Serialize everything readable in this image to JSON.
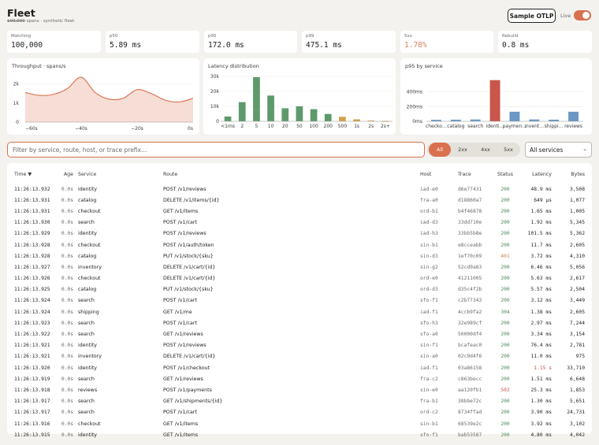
{
  "header": {
    "title": "Fleet",
    "subtitle_count": "100,000",
    "subtitle_rest": " spans · synthetic fleet",
    "sample_button": "Sample OTLP",
    "live_label": "Live"
  },
  "stats": [
    {
      "label": "Matching",
      "value": "100,000",
      "warn": false
    },
    {
      "label": "p50",
      "value": "5.89 ms",
      "warn": false
    },
    {
      "label": "p95",
      "value": "172.0 ms",
      "warn": false
    },
    {
      "label": "p99",
      "value": "475.1 ms",
      "warn": false
    },
    {
      "label": "5xx",
      "value": "1.78%",
      "warn": true
    },
    {
      "label": "Rebuild",
      "value": "0.8 ms",
      "warn": false
    }
  ],
  "colors": {
    "accent": "#d9704e",
    "green": "#5e9a6c",
    "gold": "#d4a14a",
    "red": "#c8564a",
    "blue": "#6b98c4"
  },
  "chart_data": [
    {
      "type": "area",
      "title": "Throughput · spans/s",
      "x": [
        -60,
        -55,
        -50,
        -45,
        -40,
        -35,
        -30,
        -25,
        -20,
        -15,
        -10,
        -5,
        0
      ],
      "values": [
        1550,
        1400,
        1450,
        1750,
        2350,
        1550,
        1200,
        1250,
        1700,
        1500,
        1150,
        1050,
        1250
      ],
      "yticks": [
        "0",
        "1k",
        "2k"
      ],
      "ylim": [
        0,
        2600
      ],
      "xticks": [
        "−60s",
        "−40s",
        "−20s",
        "0s"
      ],
      "xtick_values": [
        -60,
        -40,
        -20,
        0
      ]
    },
    {
      "type": "bar",
      "title": "Latency distribution",
      "categories": [
        "<1ms",
        "2",
        "5",
        "10",
        "20",
        "50",
        "100",
        "200",
        "500",
        "1s",
        "2s",
        "2s+"
      ],
      "values": [
        3200,
        12800,
        29500,
        17200,
        8700,
        10000,
        8100,
        4900,
        3000,
        1300,
        500,
        200
      ],
      "bar_colors": [
        "green",
        "green",
        "green",
        "green",
        "green",
        "green",
        "green",
        "green",
        "gold",
        "gold",
        "gold",
        "gold"
      ],
      "yticks": [
        "0",
        "10k",
        "20k",
        "30k"
      ],
      "ylim": [
        0,
        30000
      ]
    },
    {
      "type": "bar",
      "title": "p95 by service",
      "categories": [
        "checko…",
        "catalog",
        "search",
        "identi…",
        "paymen…",
        "invent…",
        "shippi…",
        "reviews"
      ],
      "values": [
        20,
        22,
        25,
        560,
        130,
        25,
        22,
        130
      ],
      "bar_colors": [
        "blue",
        "blue",
        "blue",
        "red",
        "blue",
        "blue",
        "blue",
        "blue"
      ],
      "yticks": [
        "0ms",
        "200ms",
        "400ms"
      ],
      "ylim": [
        0,
        600
      ]
    }
  ],
  "filter": {
    "placeholder": "Filter by service, route, host, or trace prefix…",
    "segments": [
      "All",
      "2xx",
      "4xx",
      "5xx"
    ],
    "active_segment": 0,
    "service_select": "All services"
  },
  "table": {
    "columns": [
      "Time ▼",
      "Age",
      "Service",
      "Route",
      "Host",
      "Trace",
      "Status",
      "Latency",
      "Bytes"
    ],
    "rows": [
      [
        "11:26:13.932",
        "0.0s",
        "identity",
        "POST /v1/reviews",
        "iad-e0",
        "d6e77431",
        "200",
        "48.9 ms",
        "3,508"
      ],
      [
        "11:26:13.931",
        "0.0s",
        "catalog",
        "DELETE /v1/items/{id}",
        "fra-a0",
        "d18860a7",
        "200",
        "649 µs",
        "1,077"
      ],
      [
        "11:26:13.931",
        "0.0s",
        "checkout",
        "GET /v1/items",
        "ord-b1",
        "b4f46878",
        "200",
        "1.65 ms",
        "1,005"
      ],
      [
        "11:26:13.930",
        "0.0s",
        "search",
        "POST /v1/cart",
        "iad-d3",
        "33dd710e",
        "200",
        "1.92 ms",
        "5,345"
      ],
      [
        "11:26:13.929",
        "0.0s",
        "identity",
        "POST /v1/reviews",
        "iad-h3",
        "33bb5b8e",
        "200",
        "101.5 ms",
        "5,362"
      ],
      [
        "11:26:13.928",
        "0.0s",
        "checkout",
        "POST /v1/auth/token",
        "sin-b1",
        "e8cceabb",
        "200",
        "11.7 ms",
        "2,605"
      ],
      [
        "11:26:13.928",
        "0.0s",
        "catalog",
        "PUT /v1/stock/{sku}",
        "sin-d3",
        "1ef70c09",
        "401",
        "3.72 ms",
        "4,310"
      ],
      [
        "11:26:13.927",
        "0.0s",
        "inventory",
        "DELETE /v1/cart/{id}",
        "sin-g2",
        "52cd9a83",
        "200",
        "6.46 ms",
        "5,056"
      ],
      [
        "11:26:13.926",
        "0.0s",
        "checkout",
        "DELETE /v1/cart/{id}",
        "ord-e0",
        "41211005",
        "200",
        "5.63 ms",
        "2,617"
      ],
      [
        "11:26:13.925",
        "0.0s",
        "catalog",
        "PUT /v1/stock/{sku}",
        "ord-d3",
        "d35c4f2b",
        "200",
        "5.57 ms",
        "2,504"
      ],
      [
        "11:26:13.924",
        "0.0s",
        "search",
        "POST /v1/cart",
        "sfo-f1",
        "c2b77343",
        "200",
        "3.12 ms",
        "3,449"
      ],
      [
        "11:26:13.924",
        "0.0s",
        "shipping",
        "GET /v1/me",
        "iad-f1",
        "4ccb9fa2",
        "304",
        "1.38 ms",
        "2,605"
      ],
      [
        "11:26:13.923",
        "0.0s",
        "search",
        "POST /v1/cart",
        "sfo-h3",
        "32e989cf",
        "200",
        "2.97 ms",
        "7,244"
      ],
      [
        "11:26:13.922",
        "0.0s",
        "search",
        "GET /v1/reviews",
        "sfo-a0",
        "50000df4",
        "200",
        "3.34 ms",
        "3,154"
      ],
      [
        "11:26:13.921",
        "0.0s",
        "identity",
        "POST /v1/reviews",
        "sin-f1",
        "bcafeac0",
        "200",
        "76.4 ms",
        "2,781"
      ],
      [
        "11:26:13.921",
        "0.0s",
        "inventory",
        "DELETE /v1/cart/{id}",
        "sin-a0",
        "02c9d4f6",
        "200",
        "11.0 ms",
        "975"
      ],
      [
        "11:26:13.920",
        "0.0s",
        "identity",
        "POST /v1/checkout",
        "iad-f1",
        "03a86158",
        "200",
        "1.15 s",
        "33,710"
      ],
      [
        "11:26:13.919",
        "0.0s",
        "search",
        "GET /v1/reviews",
        "fra-c2",
        "c863becc",
        "200",
        "1.51 ms",
        "6,648"
      ],
      [
        "11:26:13.918",
        "0.0s",
        "reviews",
        "POST /v1/payments",
        "sin-e0",
        "aa120fb1",
        "502",
        "25.3 ms",
        "1,853"
      ],
      [
        "11:26:13.917",
        "0.0s",
        "search",
        "GET /v1/shipments/{id}",
        "fra-b1",
        "38bbe72c",
        "200",
        "1.30 ms",
        "5,651"
      ],
      [
        "11:26:13.917",
        "0.0s",
        "search",
        "POST /v1/cart",
        "ord-c2",
        "8734ffad",
        "200",
        "3.90 ms",
        "24,731"
      ],
      [
        "11:26:13.916",
        "0.0s",
        "checkout",
        "GET /v1/items",
        "sin-b1",
        "68539e2c",
        "200",
        "3.92 ms",
        "3,102"
      ],
      [
        "11:26:13.915",
        "0.0s",
        "identity",
        "GET /v1/items",
        "sfo-f1",
        "bab53587",
        "200",
        "4.80 ms",
        "4,042"
      ]
    ]
  }
}
